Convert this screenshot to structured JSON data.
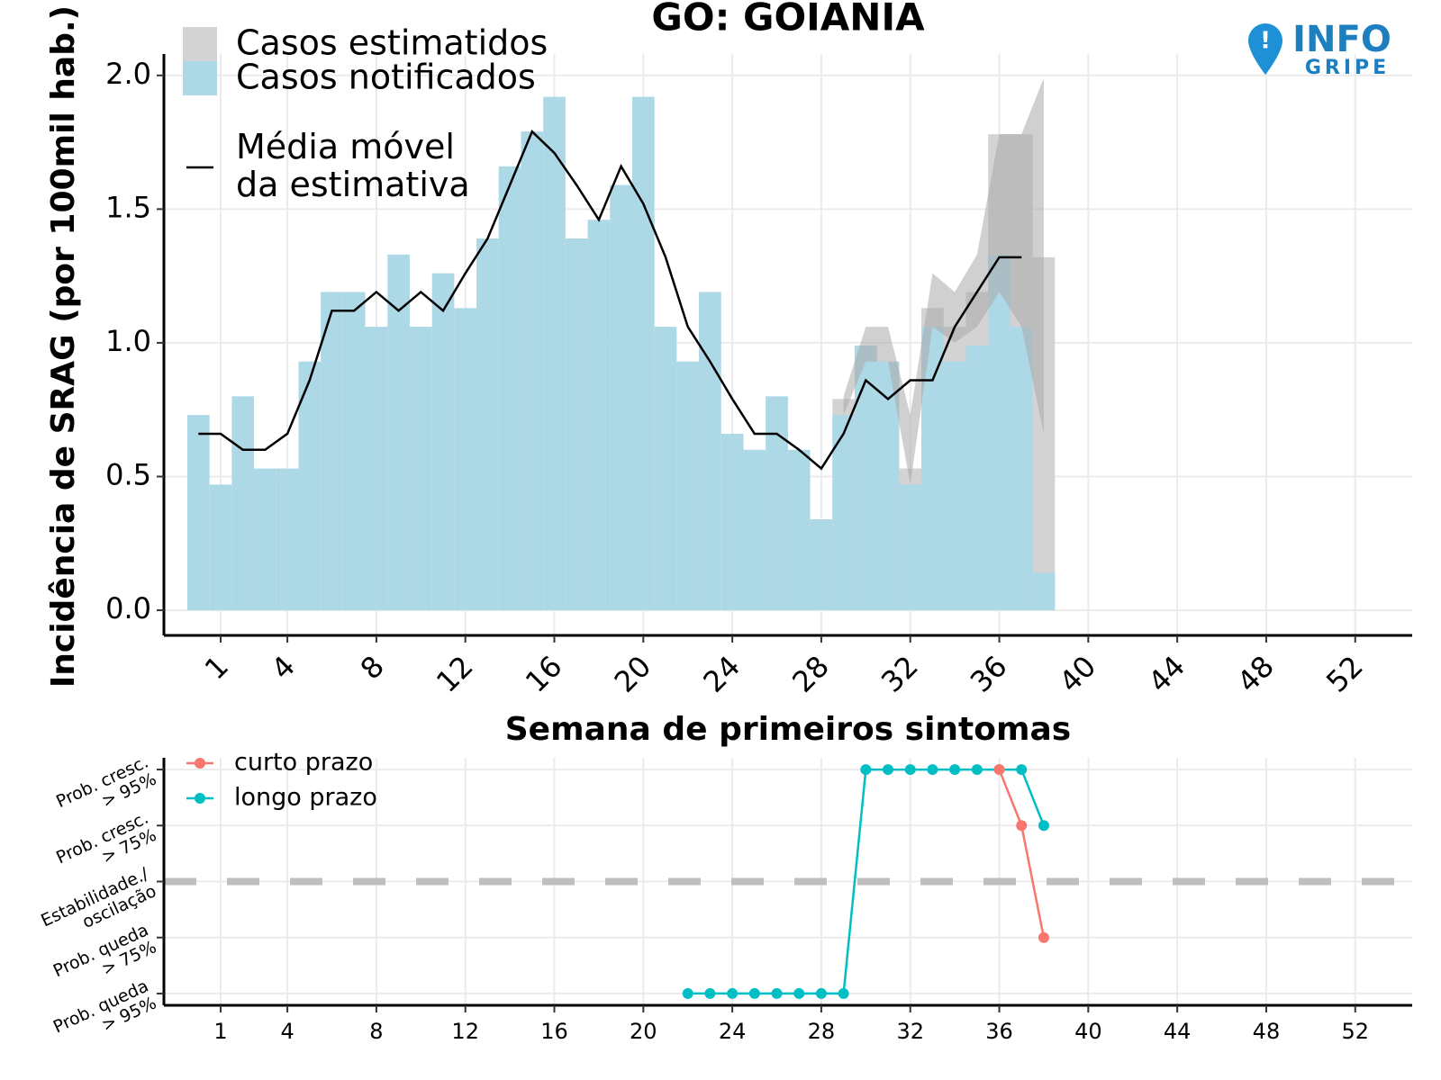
{
  "logo": {
    "top": "INFO",
    "bottom": "GRIPE"
  },
  "chart_data": [
    {
      "type": "bar",
      "title": "GO: GOIANIA",
      "x_label": "Semana de primeiros sintomas",
      "y_label": "Incidência de SRAG (por 100mil hab.)",
      "xlim": [
        -1.55,
        54.56
      ],
      "ylim": [
        -0.094,
        2.08
      ],
      "xticks": [
        1,
        4,
        8,
        12,
        16,
        20,
        24,
        28,
        32,
        36,
        40,
        44,
        48,
        52
      ],
      "yticks": [
        {
          "value": 0,
          "label": "0.0"
        },
        0.5,
        {
          "value": 1,
          "label": "1.0"
        },
        1.5,
        {
          "value": 2,
          "label": "2.0"
        }
      ],
      "grid": true,
      "series": [
        {
          "name": "Casos estimatidos",
          "type": "bar",
          "color": "#d3d3d3",
          "band_color": "#a9a9a9",
          "x": [
            29,
            30,
            31,
            32,
            33,
            34,
            35,
            36,
            37,
            38
          ],
          "values": [
            0.79,
            0.99,
            0.93,
            0.53,
            1.13,
            1.06,
            1.19,
            1.78,
            1.78,
            1.32
          ],
          "lower": [
            0.73,
            0.93,
            0.93,
            0.47,
            1.06,
            1.0,
            1.06,
            1.19,
            1.06,
            0.66
          ],
          "upper": [
            0.8,
            1.06,
            1.06,
            0.73,
            1.26,
            1.19,
            1.33,
            1.78,
            1.78,
            1.99
          ]
        },
        {
          "name": "Casos notificados",
          "type": "bar",
          "color": "#add8e6",
          "x": [
            0,
            1,
            2,
            3,
            4,
            5,
            6,
            7,
            8,
            9,
            10,
            11,
            12,
            13,
            14,
            15,
            16,
            17,
            18,
            19,
            20,
            21,
            22,
            23,
            24,
            25,
            26,
            27,
            28,
            29,
            30,
            31,
            32,
            33,
            34,
            35,
            36,
            37,
            38
          ],
          "values": [
            0.73,
            0.47,
            0.8,
            0.53,
            0.53,
            0.93,
            1.19,
            1.19,
            1.06,
            1.33,
            1.06,
            1.26,
            1.13,
            1.39,
            1.66,
            1.79,
            1.92,
            1.39,
            1.46,
            1.59,
            1.92,
            1.06,
            0.93,
            1.19,
            0.66,
            0.6,
            0.8,
            0.6,
            0.34,
            0.73,
            0.99,
            0.93,
            0.47,
            1.06,
            0.93,
            0.99,
            1.33,
            1.06,
            0.14
          ]
        },
        {
          "name": "Média móvel\nda estimativa",
          "type": "line",
          "color": "#000000",
          "x": [
            0,
            1,
            2,
            3,
            4,
            5,
            6,
            7,
            8,
            9,
            10,
            11,
            12,
            13,
            14,
            15,
            16,
            17,
            18,
            19,
            20,
            21,
            22,
            23,
            24,
            25,
            26,
            27,
            28,
            29,
            30,
            31,
            32,
            33,
            34,
            35,
            36,
            37
          ],
          "values": [
            0.66,
            0.66,
            0.6,
            0.6,
            0.66,
            0.86,
            1.12,
            1.12,
            1.19,
            1.12,
            1.19,
            1.12,
            1.26,
            1.39,
            1.59,
            1.79,
            1.71,
            1.59,
            1.46,
            1.66,
            1.52,
            1.32,
            1.06,
            0.93,
            0.79,
            0.66,
            0.66,
            0.6,
            0.53,
            0.66,
            0.86,
            0.79,
            0.86,
            0.86,
            1.06,
            1.19,
            1.32,
            1.32
          ]
        }
      ]
    },
    {
      "type": "line",
      "xlim": [
        -1.55,
        54.56
      ],
      "ylim": [
        -2.21,
        2.21
      ],
      "xticks": [
        1,
        4,
        8,
        12,
        16,
        20,
        24,
        28,
        32,
        36,
        40,
        44,
        48,
        52
      ],
      "yticks": [
        {
          "value": 2,
          "label": "Prob. cresc.\n> 95%"
        },
        {
          "value": 1,
          "label": "Prob. cresc.\n> 75%"
        },
        {
          "value": 0,
          "label": "Estabilidade./\noscilação"
        },
        {
          "value": -1,
          "label": "Prob. queda\n> 75%"
        },
        {
          "value": -2,
          "label": "Prob. queda\n> 95%"
        }
      ],
      "grid": true,
      "reference_line": 0,
      "reference_color": "#bebebe",
      "series": [
        {
          "name": "curto prazo",
          "color": "#f8766d",
          "x": [
            36,
            37,
            38
          ],
          "values": [
            2,
            1,
            -1
          ]
        },
        {
          "name": "longo prazo",
          "color": "#00bfc4",
          "x": [
            22,
            23,
            24,
            25,
            26,
            27,
            28,
            29,
            30,
            31,
            32,
            33,
            34,
            35,
            36,
            37,
            38
          ],
          "values": [
            -2,
            -2,
            -2,
            -2,
            -2,
            -2,
            -2,
            -2,
            2,
            2,
            2,
            2,
            2,
            2,
            2,
            2,
            1
          ]
        }
      ]
    }
  ]
}
